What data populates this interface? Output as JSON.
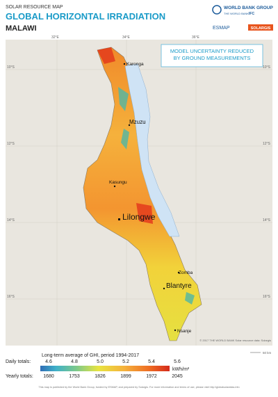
{
  "header": {
    "kicker": "SOLAR RESOURCE MAP",
    "title": "GLOBAL HORIZONTAL IRRADIATION",
    "country": "MALAWI"
  },
  "logos": {
    "world_bank_group": "WORLD BANK GROUP",
    "world_bank": "THE WORLD BANK",
    "ifc": "IFC",
    "esmap": "ESMAP",
    "solargis": "SOLARGIS"
  },
  "notice": "MODEL UNCERTAINTY REDUCED BY GROUND MEASUREMENTS",
  "grid": {
    "longitudes": [
      "32°E",
      "34°E",
      "36°E"
    ],
    "latitudes": [
      "10°S",
      "12°S",
      "14°S",
      "16°S"
    ]
  },
  "cities": [
    "Karonga",
    "Mzuzu",
    "Kasungu",
    "Lilongwe",
    "Zomba",
    "Blantyre",
    "Nsanje"
  ],
  "credits": "© 2017 THE WORLD BANK Solar resource data: Solargis",
  "scale": "50 km",
  "legend": {
    "title": "Long-term average of GHI, period 1994-2017",
    "daily_label": "Daily totals:",
    "daily": [
      "4.6",
      "4.8",
      "5.0",
      "5.2",
      "5.4",
      "5.6"
    ],
    "unit": "kWh/m²",
    "yearly_label": "Yearly totals:",
    "yearly": [
      "1680",
      "1753",
      "1826",
      "1899",
      "1972",
      "2045"
    ]
  },
  "footer": "This map is published by the World Bank Group, funded by ESMAP, and prepared by Solargis. For more information and terms of use, please visit http://globalsolaratlas.info"
}
